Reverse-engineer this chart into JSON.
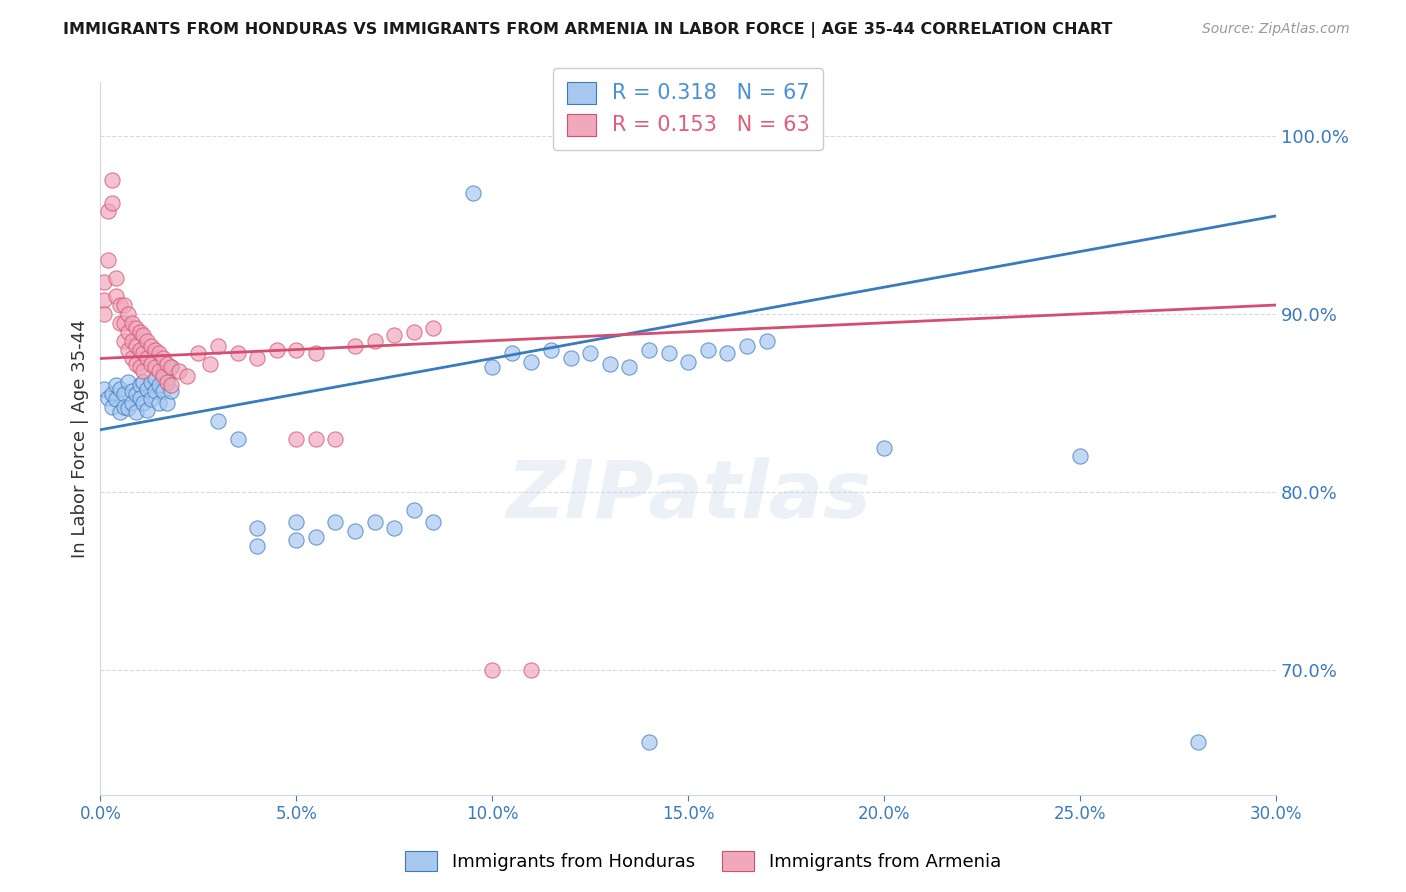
{
  "title": "IMMIGRANTS FROM HONDURAS VS IMMIGRANTS FROM ARMENIA IN LABOR FORCE | AGE 35-44 CORRELATION CHART",
  "source": "Source: ZipAtlas.com",
  "ylabel": "In Labor Force | Age 35-44",
  "xlim": [
    0.0,
    0.3
  ],
  "ylim": [
    0.63,
    1.03
  ],
  "yticks": [
    0.7,
    0.8,
    0.9,
    1.0
  ],
  "xticks": [
    0.0,
    0.05,
    0.1,
    0.15,
    0.2,
    0.25,
    0.3
  ],
  "legend_entries": [
    {
      "label": "R = 0.318   N = 67",
      "color": "#4a90d9"
    },
    {
      "label": "R = 0.153   N = 63",
      "color": "#e05c7a"
    }
  ],
  "watermark": "ZIPatlas",
  "honduras_color": "#a8c8f0",
  "armenia_color": "#f0a8bc",
  "trendline_honduras_color": "#3a7abf",
  "trendline_armenia_color": "#d44e70",
  "axis_color": "#3a7abf",
  "honduras_points": [
    [
      0.001,
      0.858
    ],
    [
      0.002,
      0.853
    ],
    [
      0.003,
      0.855
    ],
    [
      0.003,
      0.848
    ],
    [
      0.004,
      0.86
    ],
    [
      0.004,
      0.852
    ],
    [
      0.005,
      0.858
    ],
    [
      0.005,
      0.845
    ],
    [
      0.006,
      0.855
    ],
    [
      0.006,
      0.848
    ],
    [
      0.007,
      0.862
    ],
    [
      0.007,
      0.847
    ],
    [
      0.008,
      0.857
    ],
    [
      0.008,
      0.85
    ],
    [
      0.009,
      0.855
    ],
    [
      0.009,
      0.845
    ],
    [
      0.01,
      0.86
    ],
    [
      0.01,
      0.853
    ],
    [
      0.011,
      0.862
    ],
    [
      0.011,
      0.85
    ],
    [
      0.012,
      0.858
    ],
    [
      0.012,
      0.846
    ],
    [
      0.013,
      0.862
    ],
    [
      0.013,
      0.852
    ],
    [
      0.014,
      0.864
    ],
    [
      0.014,
      0.857
    ],
    [
      0.015,
      0.86
    ],
    [
      0.015,
      0.85
    ],
    [
      0.016,
      0.867
    ],
    [
      0.016,
      0.857
    ],
    [
      0.017,
      0.864
    ],
    [
      0.017,
      0.85
    ],
    [
      0.018,
      0.87
    ],
    [
      0.018,
      0.857
    ],
    [
      0.03,
      0.84
    ],
    [
      0.035,
      0.83
    ],
    [
      0.04,
      0.78
    ],
    [
      0.04,
      0.77
    ],
    [
      0.05,
      0.783
    ],
    [
      0.05,
      0.773
    ],
    [
      0.055,
      0.775
    ],
    [
      0.06,
      0.783
    ],
    [
      0.065,
      0.778
    ],
    [
      0.07,
      0.783
    ],
    [
      0.075,
      0.78
    ],
    [
      0.08,
      0.79
    ],
    [
      0.085,
      0.783
    ],
    [
      0.095,
      0.968
    ],
    [
      0.1,
      0.87
    ],
    [
      0.105,
      0.878
    ],
    [
      0.11,
      0.873
    ],
    [
      0.115,
      0.88
    ],
    [
      0.12,
      0.875
    ],
    [
      0.125,
      0.878
    ],
    [
      0.13,
      0.872
    ],
    [
      0.135,
      0.87
    ],
    [
      0.14,
      0.88
    ],
    [
      0.145,
      0.878
    ],
    [
      0.15,
      0.873
    ],
    [
      0.155,
      0.88
    ],
    [
      0.16,
      0.878
    ],
    [
      0.165,
      0.882
    ],
    [
      0.17,
      0.885
    ],
    [
      0.2,
      0.825
    ],
    [
      0.25,
      0.82
    ],
    [
      0.14,
      0.66
    ],
    [
      0.28,
      0.66
    ]
  ],
  "armenia_points": [
    [
      0.001,
      0.918
    ],
    [
      0.001,
      0.908
    ],
    [
      0.001,
      0.9
    ],
    [
      0.002,
      0.958
    ],
    [
      0.002,
      0.93
    ],
    [
      0.003,
      0.975
    ],
    [
      0.003,
      0.962
    ],
    [
      0.004,
      0.92
    ],
    [
      0.004,
      0.91
    ],
    [
      0.005,
      0.905
    ],
    [
      0.005,
      0.895
    ],
    [
      0.006,
      0.905
    ],
    [
      0.006,
      0.895
    ],
    [
      0.006,
      0.885
    ],
    [
      0.007,
      0.9
    ],
    [
      0.007,
      0.89
    ],
    [
      0.007,
      0.88
    ],
    [
      0.008,
      0.895
    ],
    [
      0.008,
      0.885
    ],
    [
      0.008,
      0.875
    ],
    [
      0.009,
      0.892
    ],
    [
      0.009,
      0.882
    ],
    [
      0.009,
      0.872
    ],
    [
      0.01,
      0.89
    ],
    [
      0.01,
      0.88
    ],
    [
      0.01,
      0.87
    ],
    [
      0.011,
      0.888
    ],
    [
      0.011,
      0.878
    ],
    [
      0.011,
      0.868
    ],
    [
      0.012,
      0.885
    ],
    [
      0.012,
      0.875
    ],
    [
      0.013,
      0.882
    ],
    [
      0.013,
      0.872
    ],
    [
      0.014,
      0.88
    ],
    [
      0.014,
      0.87
    ],
    [
      0.015,
      0.878
    ],
    [
      0.015,
      0.868
    ],
    [
      0.016,
      0.875
    ],
    [
      0.016,
      0.865
    ],
    [
      0.017,
      0.872
    ],
    [
      0.017,
      0.862
    ],
    [
      0.018,
      0.87
    ],
    [
      0.018,
      0.86
    ],
    [
      0.02,
      0.868
    ],
    [
      0.022,
      0.865
    ],
    [
      0.025,
      0.878
    ],
    [
      0.028,
      0.872
    ],
    [
      0.03,
      0.882
    ],
    [
      0.035,
      0.878
    ],
    [
      0.04,
      0.875
    ],
    [
      0.045,
      0.88
    ],
    [
      0.05,
      0.88
    ],
    [
      0.055,
      0.878
    ],
    [
      0.065,
      0.882
    ],
    [
      0.07,
      0.885
    ],
    [
      0.075,
      0.888
    ],
    [
      0.08,
      0.89
    ],
    [
      0.085,
      0.892
    ],
    [
      0.05,
      0.83
    ],
    [
      0.055,
      0.83
    ],
    [
      0.06,
      0.83
    ],
    [
      0.1,
      0.7
    ],
    [
      0.11,
      0.7
    ]
  ]
}
